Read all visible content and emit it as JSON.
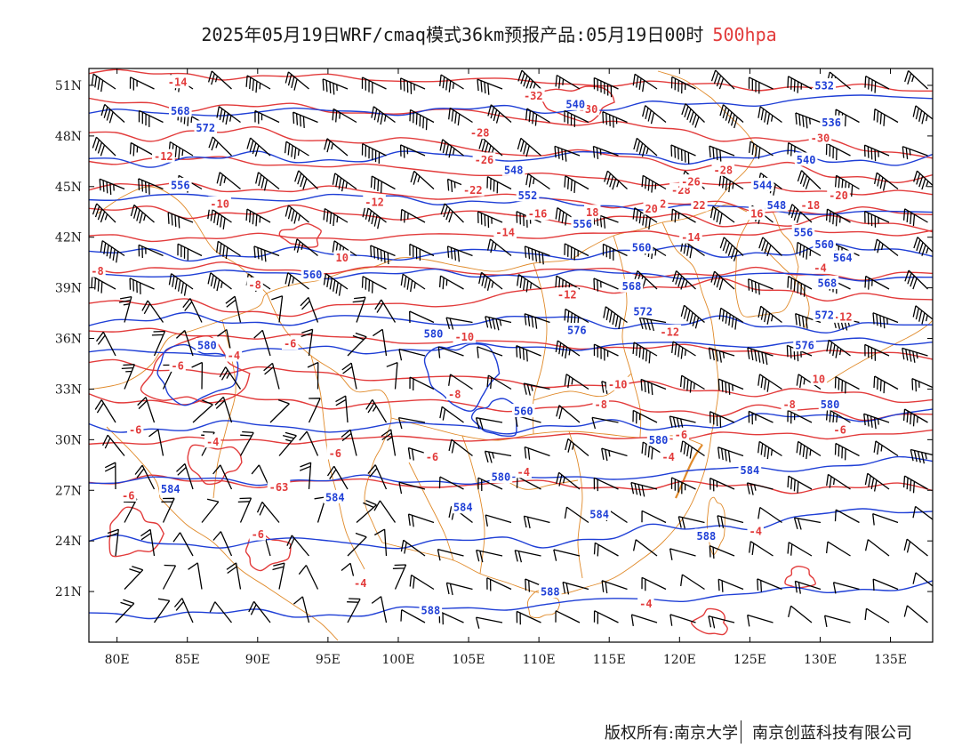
{
  "title": {
    "main": "2025年05月19日WRF/cmaq模式36km预报产品:05月19日00时",
    "level": "500hpa"
  },
  "colors": {
    "temperature": "#e23b3b",
    "height": "#1f3fd6",
    "border": "#e08a2a",
    "barb": "#000000"
  },
  "map": {
    "lon_range": [
      78,
      138
    ],
    "lat_range": [
      18,
      52
    ],
    "lon_ticks": [
      "80E",
      "85E",
      "90E",
      "95E",
      "100E",
      "105E",
      "110E",
      "115E",
      "120E",
      "125E",
      "130E",
      "135E"
    ],
    "lat_ticks": [
      "51N",
      "48N",
      "45N",
      "42N",
      "39N",
      "36N",
      "33N",
      "30N",
      "27N",
      "24N",
      "21N"
    ]
  },
  "labels": {
    "temperature": [
      {
        "lon": 84.3,
        "lat": 51.2,
        "text": "-14"
      },
      {
        "lon": 83.3,
        "lat": 46.8,
        "text": "-12"
      },
      {
        "lon": 87.3,
        "lat": 44.0,
        "text": "-10"
      },
      {
        "lon": 78.6,
        "lat": 40.0,
        "text": "-8"
      },
      {
        "lon": 89.8,
        "lat": 39.2,
        "text": "-8"
      },
      {
        "lon": 92.3,
        "lat": 35.7,
        "text": "-6"
      },
      {
        "lon": 88.3,
        "lat": 35.0,
        "text": "-4"
      },
      {
        "lon": 84.3,
        "lat": 34.4,
        "text": "-6"
      },
      {
        "lon": 81.3,
        "lat": 30.6,
        "text": "-6"
      },
      {
        "lon": 86.8,
        "lat": 29.9,
        "text": "-4"
      },
      {
        "lon": 95.5,
        "lat": 29.2,
        "text": "-6"
      },
      {
        "lon": 91.5,
        "lat": 27.2,
        "text": "-63"
      },
      {
        "lon": 80.8,
        "lat": 26.7,
        "text": "-6"
      },
      {
        "lon": 90.0,
        "lat": 24.4,
        "text": "-6"
      },
      {
        "lon": 96.0,
        "lat": 40.8,
        "text": "10"
      },
      {
        "lon": 98.3,
        "lat": 44.1,
        "text": "-12"
      },
      {
        "lon": 104.7,
        "lat": 36.1,
        "text": "-10"
      },
      {
        "lon": 104.0,
        "lat": 32.7,
        "text": "-8"
      },
      {
        "lon": 102.4,
        "lat": 29.0,
        "text": "-6"
      },
      {
        "lon": 108.9,
        "lat": 28.1,
        "text": "-4"
      },
      {
        "lon": 97.3,
        "lat": 21.5,
        "text": "-4"
      },
      {
        "lon": 109.6,
        "lat": 50.4,
        "text": "-32"
      },
      {
        "lon": 113.5,
        "lat": 49.6,
        "text": "-30"
      },
      {
        "lon": 105.8,
        "lat": 48.2,
        "text": "-28"
      },
      {
        "lon": 106.1,
        "lat": 46.6,
        "text": "-26"
      },
      {
        "lon": 105.3,
        "lat": 44.8,
        "text": "-22"
      },
      {
        "lon": 109.9,
        "lat": 43.4,
        "text": "-16"
      },
      {
        "lon": 113.8,
        "lat": 43.5,
        "text": "18"
      },
      {
        "lon": 107.6,
        "lat": 42.3,
        "text": "-14"
      },
      {
        "lon": 112.0,
        "lat": 38.6,
        "text": "-12"
      },
      {
        "lon": 115.6,
        "lat": 33.3,
        "text": "-10"
      },
      {
        "lon": 114.4,
        "lat": 32.1,
        "text": "-8"
      },
      {
        "lon": 120.1,
        "lat": 44.8,
        "text": "-28"
      },
      {
        "lon": 118.6,
        "lat": 44.0,
        "text": "-2"
      },
      {
        "lon": 120.8,
        "lat": 45.3,
        "text": "-26"
      },
      {
        "lon": 118.0,
        "lat": 43.7,
        "text": "20"
      },
      {
        "lon": 121.4,
        "lat": 43.9,
        "text": "22"
      },
      {
        "lon": 125.5,
        "lat": 43.4,
        "text": "16"
      },
      {
        "lon": 123.1,
        "lat": 46.0,
        "text": "-28"
      },
      {
        "lon": 130.0,
        "lat": 47.9,
        "text": "-30"
      },
      {
        "lon": 131.3,
        "lat": 44.5,
        "text": "-20"
      },
      {
        "lon": 129.3,
        "lat": 43.9,
        "text": "-18"
      },
      {
        "lon": 120.8,
        "lat": 42.0,
        "text": "-14"
      },
      {
        "lon": 119.3,
        "lat": 36.4,
        "text": "-12"
      },
      {
        "lon": 131.6,
        "lat": 37.3,
        "text": "-12"
      },
      {
        "lon": 130.0,
        "lat": 40.2,
        "text": "-4"
      },
      {
        "lon": 129.9,
        "lat": 33.6,
        "text": "10"
      },
      {
        "lon": 127.8,
        "lat": 32.1,
        "text": "-8"
      },
      {
        "lon": 120.1,
        "lat": 30.3,
        "text": "-6"
      },
      {
        "lon": 119.2,
        "lat": 29.0,
        "text": "-4"
      },
      {
        "lon": 131.4,
        "lat": 30.6,
        "text": "-6"
      },
      {
        "lon": 125.4,
        "lat": 24.6,
        "text": "-4"
      },
      {
        "lon": 117.6,
        "lat": 20.3,
        "text": "-4"
      }
    ],
    "height": [
      {
        "lon": 84.5,
        "lat": 49.5,
        "text": "568"
      },
      {
        "lon": 86.3,
        "lat": 48.5,
        "text": "572"
      },
      {
        "lon": 84.5,
        "lat": 45.1,
        "text": "556"
      },
      {
        "lon": 93.9,
        "lat": 39.8,
        "text": "560"
      },
      {
        "lon": 86.4,
        "lat": 35.6,
        "text": "580"
      },
      {
        "lon": 102.5,
        "lat": 36.3,
        "text": "580"
      },
      {
        "lon": 83.8,
        "lat": 27.1,
        "text": "584"
      },
      {
        "lon": 95.5,
        "lat": 26.6,
        "text": "584"
      },
      {
        "lon": 104.6,
        "lat": 26.0,
        "text": "584"
      },
      {
        "lon": 107.3,
        "lat": 27.8,
        "text": "580"
      },
      {
        "lon": 108.9,
        "lat": 31.7,
        "text": "560"
      },
      {
        "lon": 112.6,
        "lat": 49.9,
        "text": "540"
      },
      {
        "lon": 108.2,
        "lat": 46.0,
        "text": "548"
      },
      {
        "lon": 109.2,
        "lat": 44.5,
        "text": "552"
      },
      {
        "lon": 113.1,
        "lat": 42.8,
        "text": "556"
      },
      {
        "lon": 117.3,
        "lat": 41.4,
        "text": "560"
      },
      {
        "lon": 116.6,
        "lat": 39.1,
        "text": "568"
      },
      {
        "lon": 117.4,
        "lat": 37.6,
        "text": "572"
      },
      {
        "lon": 112.7,
        "lat": 36.5,
        "text": "576"
      },
      {
        "lon": 114.3,
        "lat": 25.6,
        "text": "584"
      },
      {
        "lon": 118.5,
        "lat": 30.0,
        "text": "580"
      },
      {
        "lon": 110.8,
        "lat": 21.0,
        "text": "588"
      },
      {
        "lon": 102.3,
        "lat": 19.9,
        "text": "588"
      },
      {
        "lon": 130.3,
        "lat": 51.0,
        "text": "532"
      },
      {
        "lon": 130.8,
        "lat": 48.8,
        "text": "536"
      },
      {
        "lon": 129.0,
        "lat": 46.6,
        "text": "540"
      },
      {
        "lon": 125.9,
        "lat": 45.1,
        "text": "544"
      },
      {
        "lon": 126.9,
        "lat": 43.9,
        "text": "548"
      },
      {
        "lon": 128.8,
        "lat": 42.3,
        "text": "556"
      },
      {
        "lon": 130.3,
        "lat": 41.6,
        "text": "560"
      },
      {
        "lon": 131.6,
        "lat": 40.8,
        "text": "564"
      },
      {
        "lon": 130.5,
        "lat": 39.3,
        "text": "568"
      },
      {
        "lon": 130.3,
        "lat": 37.4,
        "text": "572"
      },
      {
        "lon": 128.9,
        "lat": 35.6,
        "text": "576"
      },
      {
        "lon": 125.0,
        "lat": 28.2,
        "text": "584"
      },
      {
        "lon": 130.7,
        "lat": 32.1,
        "text": "580"
      },
      {
        "lon": 121.9,
        "lat": 24.3,
        "text": "588"
      }
    ]
  },
  "footer": {
    "left": "版权所有:南京大学",
    "right": "南京创蓝科技有限公司"
  }
}
